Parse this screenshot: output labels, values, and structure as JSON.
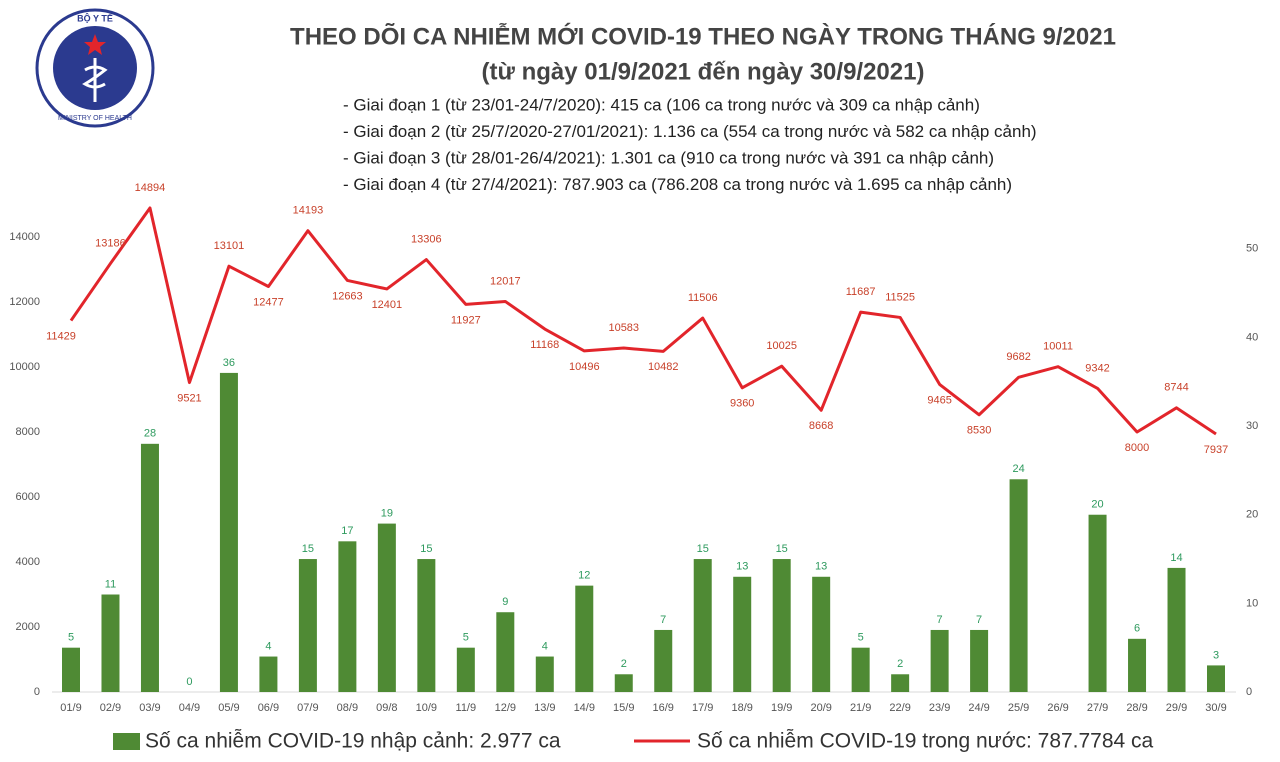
{
  "logo": {
    "top": "BỘ Y TẾ",
    "bottom": "MINISTRY OF HEALTH"
  },
  "chart_data": {
    "type": "combo",
    "title": "THEO DÕI CA NHIỄM MỚI COVID-19 THEO NGÀY TRONG THÁNG 9/2021",
    "subtitle": "(từ ngày 01/9/2021 đến ngày 30/9/2021)",
    "notes": [
      "- Giai đoạn 1 (từ 23/01-24/7/2020): 415 ca (106 ca trong nước và 309 ca nhập cảnh)",
      "- Giai đoạn 2 (từ 25/7/2020-27/01/2021): 1.136 ca (554 ca trong nước và 582 ca nhập cảnh)",
      "- Giai đoạn 3 (từ 28/01-26/4/2021): 1.301 ca (910 ca trong nước và 391 ca nhập cảnh)",
      "- Giai đoạn 4 (từ 27/4/2021): 787.903 ca (786.208 ca trong nước và 1.695 ca nhập cảnh)"
    ],
    "categories": [
      "01/9",
      "02/9",
      "03/9",
      "04/9",
      "05/9",
      "06/9",
      "07/9",
      "08/9",
      "09/8",
      "10/9",
      "11/9",
      "12/9",
      "13/9",
      "14/9",
      "15/9",
      "16/9",
      "17/9",
      "18/9",
      "19/9",
      "20/9",
      "21/9",
      "22/9",
      "23/9",
      "24/9",
      "25/9",
      "26/9",
      "27/9",
      "28/9",
      "29/9",
      "30/9"
    ],
    "series": [
      {
        "name": "Số ca nhiễm COVID-19 nhập cảnh: 2.977 ca",
        "type": "bar",
        "axis": "y2",
        "color": "#4f8a34",
        "label_color": "#2e9a5e",
        "values": [
          5,
          11,
          28,
          0,
          36,
          4,
          15,
          17,
          19,
          15,
          5,
          9,
          4,
          12,
          2,
          7,
          15,
          13,
          15,
          13,
          5,
          2,
          7,
          7,
          24,
          null,
          20,
          6,
          14,
          3
        ]
      },
      {
        "name": "Số ca nhiễm COVID-19 trong nước: 787.7784 ca",
        "type": "line",
        "color": "#e2252b",
        "label_color": "#c8412a",
        "values": [
          11429,
          13186,
          14894,
          9521,
          13101,
          12477,
          14193,
          12663,
          12401,
          13306,
          11927,
          12017,
          11168,
          10496,
          10583,
          10482,
          11506,
          9360,
          10025,
          8668,
          11687,
          11525,
          9465,
          8530,
          9682,
          10011,
          9342,
          8000,
          8744,
          7937
        ]
      }
    ],
    "ylim": [
      0,
      15000
    ],
    "yticks": [
      0,
      2000,
      4000,
      6000,
      8000,
      10000,
      12000,
      14000
    ],
    "y2lim": [
      0,
      55
    ],
    "y2ticks": [
      0,
      10,
      20,
      30,
      40,
      50
    ]
  }
}
